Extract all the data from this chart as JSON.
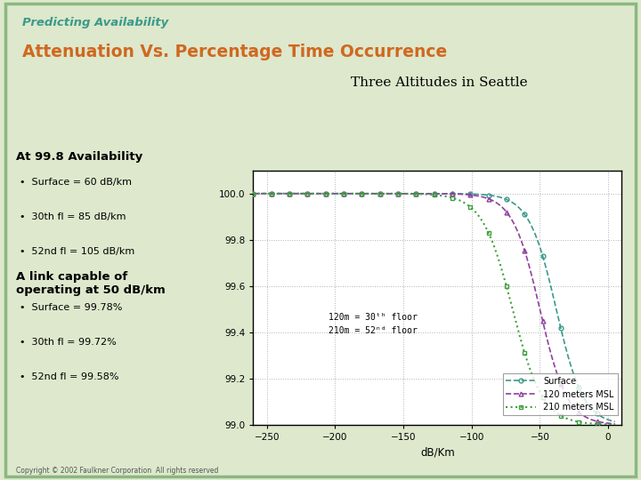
{
  "title_small": "Predicting Availability",
  "title_large": "Attenuation Vs. Percentage Time Occurrence",
  "title_sub": "Three Altitudes in Seattle",
  "xlabel": "dB/Km",
  "xlim": [
    -260,
    10
  ],
  "ylim": [
    99.0,
    100.1
  ],
  "yticks": [
    99.0,
    99.2,
    99.4,
    99.6,
    99.8,
    100.0
  ],
  "xticks": [
    -250,
    -200,
    -150,
    -100,
    -50,
    0
  ],
  "bg_color": "#dde8cc",
  "plot_bg": "#ffffff",
  "title_small_color": "#3a9a8a",
  "title_large_color": "#d06820",
  "title_sub_color": "#000000",
  "line_surface_color": "#3a9a8a",
  "line_120_color": "#9040a0",
  "line_210_color": "#40a040",
  "annot_color": "#000000",
  "legend_surface": "Surface",
  "legend_120": "120 meters MSL",
  "legend_210": "210 meters MSL",
  "left_text_1": "At 99.8 Availability",
  "left_bullets_1": [
    "Surface = 60 dB/km",
    "30th fl = 85 dB/km",
    "52nd fl = 105 dB/km"
  ],
  "left_text_2": "A link capable of\noperating at 50 dB/km",
  "left_bullets_2": [
    "Surface = 99.78%",
    "30th fl = 99.72%",
    "52nd fl = 99.58%"
  ],
  "copyright": "Copyright © 2002 Faulkner Corporation  All rights reserved"
}
